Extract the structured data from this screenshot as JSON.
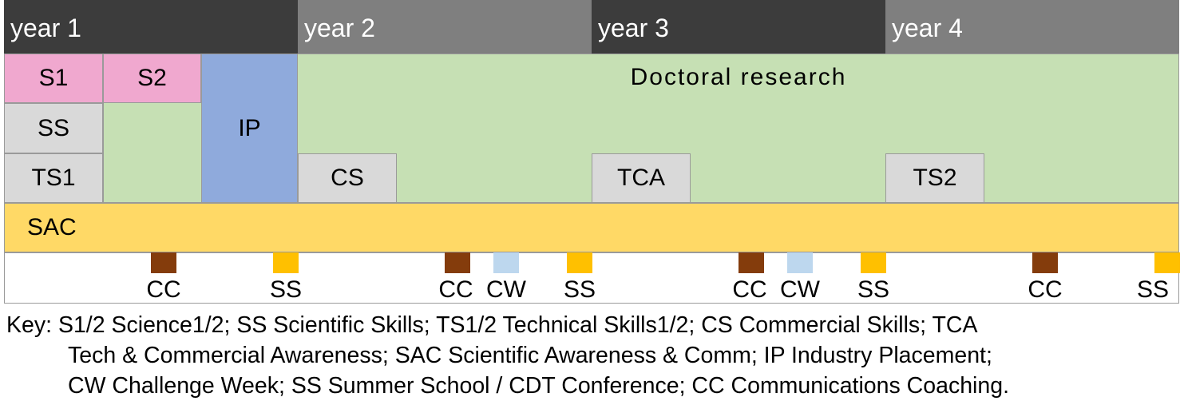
{
  "years": [
    "year 1",
    "year 2",
    "year 3",
    "year 4"
  ],
  "blocks": {
    "s1": "S1",
    "s2": "S2",
    "ss": "SS",
    "ts1": "TS1",
    "ip": "IP",
    "doctoral_research": "Doctoral research",
    "cs": "CS",
    "tca": "TCA",
    "ts2": "TS2",
    "sac": "SAC"
  },
  "markers": [
    {
      "label": "CC",
      "type": "cc"
    },
    {
      "label": "SS",
      "type": "ss"
    },
    {
      "label": "CC",
      "type": "cc"
    },
    {
      "label": "CW",
      "type": "cw"
    },
    {
      "label": "SS",
      "type": "ss"
    },
    {
      "label": "CC",
      "type": "cc"
    },
    {
      "label": "CW",
      "type": "cw"
    },
    {
      "label": "SS",
      "type": "ss"
    },
    {
      "label": "CC",
      "type": "cc"
    },
    {
      "label": "SS",
      "type": "ss"
    }
  ],
  "colors": {
    "year_dark": "#3c3c3c",
    "year_light": "#7f7f7f",
    "science": "#f0a8cf",
    "skills": "#d9d9d9",
    "placement": "#8faadc",
    "research": "#c6e0b4",
    "sac": "#ffd966",
    "cc": "#843c0c",
    "ss": "#ffc000",
    "cw": "#bdd7ee"
  },
  "key": {
    "line1": "Key: S1/2 Science1/2; SS Scientific Skills; TS1/2 Technical Skills1/2; CS Commercial Skills; TCA",
    "line2": "Tech & Commercial Awareness; SAC Scientific Awareness & Comm; IP Industry Placement;",
    "line3": "CW Challenge Week; SS Summer School / CDT Conference; CC Communications Coaching."
  }
}
